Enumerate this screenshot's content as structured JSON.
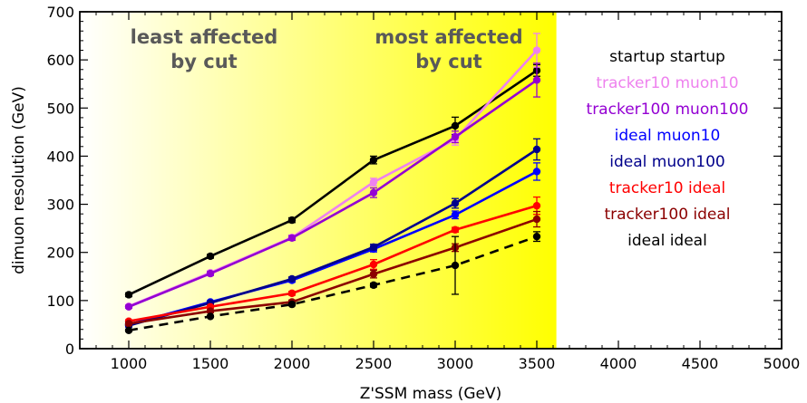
{
  "chart_data": {
    "type": "line",
    "xlabel": "Z'SSM mass (GeV)",
    "ylabel": "dimuon resolution (GeV)",
    "xlim": [
      700,
      5000
    ],
    "ylim": [
      0,
      700
    ],
    "xticks": [
      1000,
      1500,
      2000,
      2500,
      3000,
      3500,
      4000,
      4500,
      5000
    ],
    "yticks": [
      0,
      100,
      200,
      300,
      400,
      500,
      600,
      700
    ],
    "shaded_band": {
      "x_from": 700,
      "x_to": 3620,
      "gradient": [
        "#ffffff",
        "#ffff00"
      ]
    },
    "annotations": [
      {
        "lines": [
          "least affected",
          "by cut"
        ],
        "color": "#595959"
      },
      {
        "lines": [
          "most affected",
          "by cut"
        ],
        "color": "#595959"
      }
    ],
    "legend_placement": "right",
    "series": [
      {
        "name": "startup startup",
        "color": "#000000",
        "dashed": false,
        "x": [
          1000,
          1500,
          2000,
          2500,
          3000,
          3500
        ],
        "y": [
          112,
          192,
          267,
          392,
          463,
          578
        ],
        "err": [
          4,
          4,
          5,
          8,
          18,
          12
        ]
      },
      {
        "name": "tracker10 muon10",
        "color": "#ee82ee",
        "dashed": false,
        "x": [
          1000,
          1500,
          2000,
          2500,
          3000,
          3500
        ],
        "y": [
          88,
          158,
          231,
          346,
          435,
          620
        ],
        "err": [
          3,
          4,
          5,
          8,
          12,
          35
        ]
      },
      {
        "name": "tracker100 muon100",
        "color": "#9400d3",
        "dashed": false,
        "x": [
          1000,
          1500,
          2000,
          2500,
          3000,
          3500
        ],
        "y": [
          87,
          156,
          230,
          324,
          440,
          558
        ],
        "err": [
          3,
          4,
          5,
          10,
          12,
          35
        ]
      },
      {
        "name": "ideal muon10",
        "color": "#0000ff",
        "dashed": false,
        "x": [
          1000,
          1500,
          2000,
          2500,
          3000,
          3500
        ],
        "y": [
          50,
          97,
          142,
          207,
          278,
          368
        ],
        "err": [
          3,
          3,
          4,
          6,
          8,
          18
        ]
      },
      {
        "name": "ideal muon100",
        "color": "#00008b",
        "dashed": false,
        "x": [
          1000,
          1500,
          2000,
          2500,
          3000,
          3500
        ],
        "y": [
          48,
          95,
          145,
          211,
          302,
          414
        ],
        "err": [
          3,
          3,
          4,
          6,
          10,
          22
        ]
      },
      {
        "name": "tracker10 ideal",
        "color": "#ff0000",
        "dashed": false,
        "x": [
          1000,
          1500,
          2000,
          2500,
          3000,
          3500
        ],
        "y": [
          57,
          87,
          115,
          175,
          247,
          297
        ],
        "err": [
          3,
          3,
          4,
          10,
          5,
          18
        ]
      },
      {
        "name": "tracker100 ideal",
        "color": "#8b0000",
        "dashed": false,
        "x": [
          1000,
          1500,
          2000,
          2500,
          3000,
          3500
        ],
        "y": [
          52,
          78,
          97,
          155,
          210,
          269
        ],
        "err": [
          3,
          3,
          4,
          8,
          8,
          16
        ]
      },
      {
        "name": "ideal ideal",
        "color": "#000000",
        "dashed": true,
        "x": [
          1000,
          1500,
          2000,
          2500,
          3000,
          3500
        ],
        "y": [
          38,
          67,
          92,
          132,
          173,
          233
        ],
        "err": [
          2,
          2,
          3,
          4,
          60,
          10
        ]
      }
    ]
  }
}
